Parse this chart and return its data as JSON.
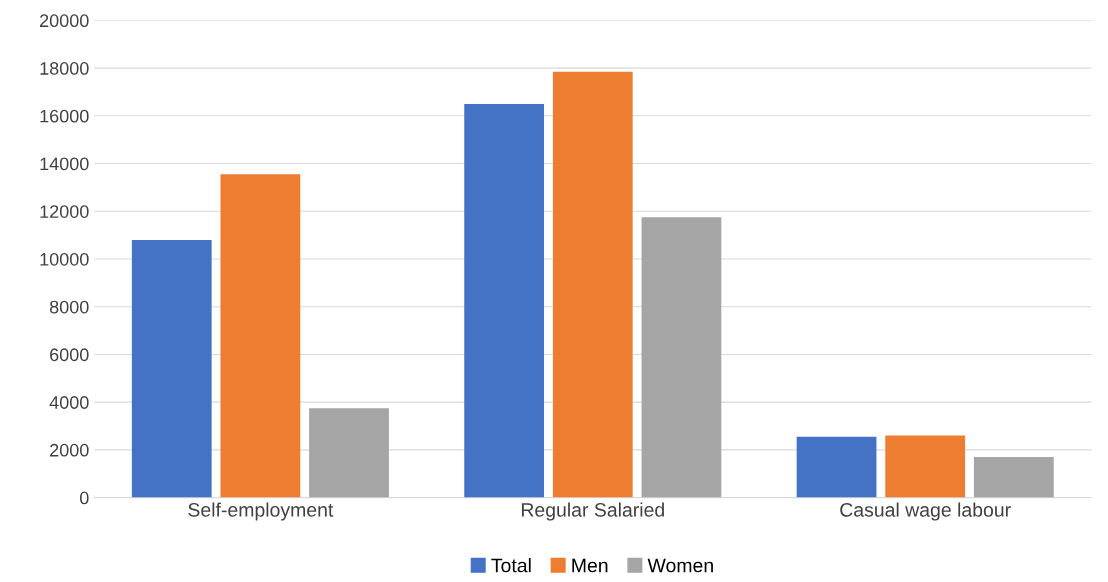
{
  "chart_data": {
    "type": "bar",
    "categories": [
      "Self-employment",
      "Regular Salaried",
      "Casual wage labour"
    ],
    "series": [
      {
        "name": "Total",
        "color": "#4472c4",
        "values": [
          10800,
          16500,
          2550
        ]
      },
      {
        "name": "Men",
        "color": "#ed7d31",
        "values": [
          13550,
          17850,
          2600
        ]
      },
      {
        "name": "Women",
        "color": "#a5a5a5",
        "values": [
          3750,
          11750,
          1700
        ]
      }
    ],
    "ylim": [
      0,
      20000
    ],
    "yticks": [
      0,
      2000,
      4000,
      6000,
      8000,
      10000,
      12000,
      14000,
      16000,
      18000,
      20000
    ],
    "grid": "y",
    "legend": "bottom"
  }
}
